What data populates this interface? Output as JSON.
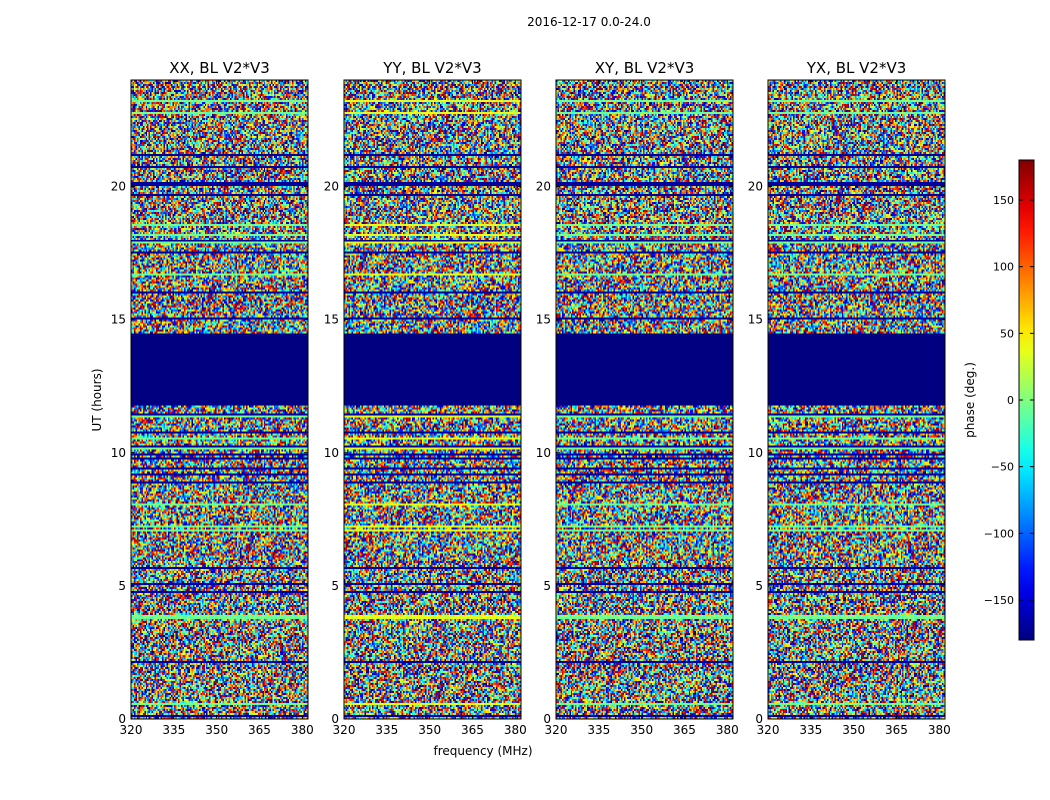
{
  "chart_data": {
    "type": "heatmap",
    "suptitle": "2016-12-17 0.0-24.0",
    "xlabel": "frequency (MHz)",
    "ylabel": "UT (hours)",
    "xlim": [
      320,
      382
    ],
    "ylim": [
      0,
      24
    ],
    "xticks": [
      320,
      335,
      350,
      365,
      380
    ],
    "yticks": [
      0,
      5,
      10,
      15,
      20
    ],
    "panels": [
      {
        "title": "XX, BL V2*V3"
      },
      {
        "title": "YY, BL V2*V3"
      },
      {
        "title": "XY, BL V2*V3"
      },
      {
        "title": "YX, BL V2*V3"
      }
    ],
    "colorbar": {
      "label": "phase (deg.)",
      "range": [
        -180,
        180
      ],
      "ticks": [
        -150,
        -100,
        -50,
        0,
        50,
        100,
        150
      ],
      "colormap": "jet"
    },
    "flagged_ut_range": [
      11.75,
      14.5
    ],
    "flagged_value": -180,
    "notes": "Phase values appear as random noise across the band; bands of nearly constant phase occur at various UT hours; a fully flagged gap spans roughly 11.75-14.5 UT."
  }
}
